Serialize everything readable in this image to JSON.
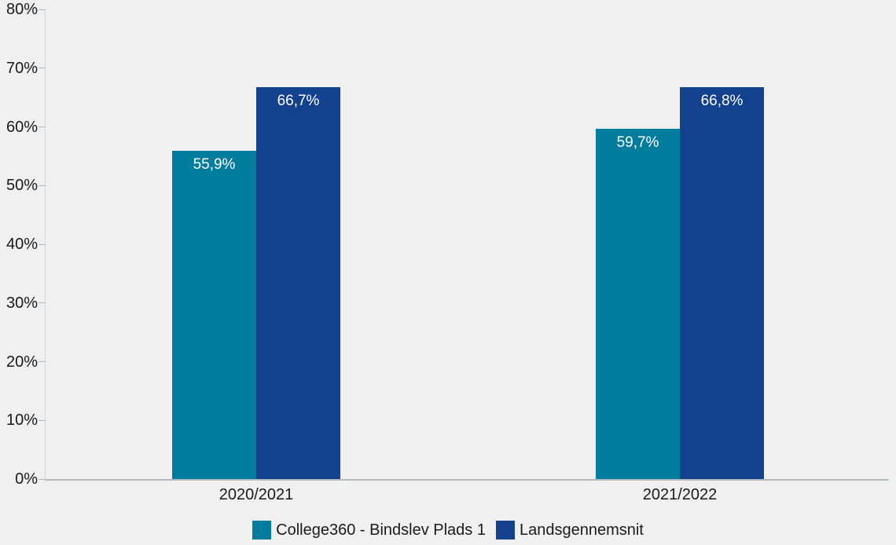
{
  "chart_data": {
    "type": "bar",
    "title": "",
    "xlabel": "",
    "ylabel": "",
    "categories": [
      "2020/2021",
      "2021/2022"
    ],
    "series": [
      {
        "name": "College360 - Bindslev Plads 1",
        "color": "#007C9D",
        "values": [
          55.9,
          59.7
        ],
        "value_labels": [
          "55,9%",
          "59,7%"
        ]
      },
      {
        "name": "Landsgennemsnit",
        "color": "#13418E",
        "values": [
          66.7,
          66.8
        ],
        "value_labels": [
          "66,7%",
          "66,8%"
        ]
      }
    ],
    "ylim": [
      0,
      80
    ],
    "y_ticks": [
      {
        "value": 0,
        "label": "0%"
      },
      {
        "value": 10,
        "label": "10%"
      },
      {
        "value": 20,
        "label": "20%"
      },
      {
        "value": 30,
        "label": "30%"
      },
      {
        "value": 40,
        "label": "40%"
      },
      {
        "value": 50,
        "label": "50%"
      },
      {
        "value": 60,
        "label": "60%"
      },
      {
        "value": 70,
        "label": "70%"
      },
      {
        "value": 80,
        "label": "80%"
      }
    ],
    "grid": false,
    "legend_position": "bottom",
    "value_label_position": "inside-top",
    "value_label_color": "#FFFFFF",
    "background_color": "#F0F0F0"
  }
}
